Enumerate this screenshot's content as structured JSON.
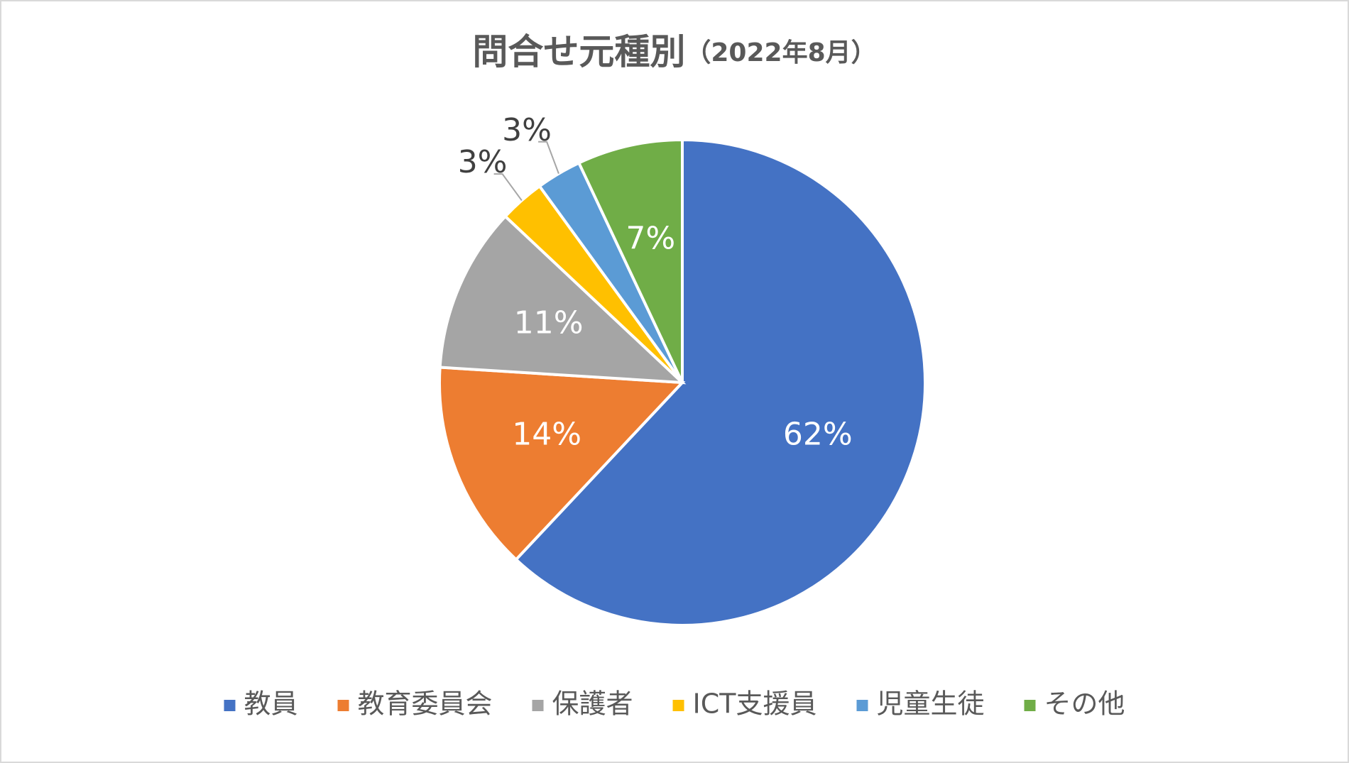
{
  "chart_data": {
    "type": "pie",
    "title": "問合せ元種別",
    "subtitle": "（2022年8月）",
    "categories": [
      "教員",
      "教育委員会",
      "保護者",
      "ICT支援員",
      "児童生徒",
      "その他"
    ],
    "values": [
      62,
      14,
      11,
      3,
      3,
      7
    ],
    "value_labels": [
      "62%",
      "14%",
      "11%",
      "3%",
      "3%",
      "7%"
    ],
    "colors": [
      "#4472c4",
      "#ed7d31",
      "#a5a5a5",
      "#ffc000",
      "#5b9bd5",
      "#70ad47"
    ],
    "legend": "bottom"
  }
}
